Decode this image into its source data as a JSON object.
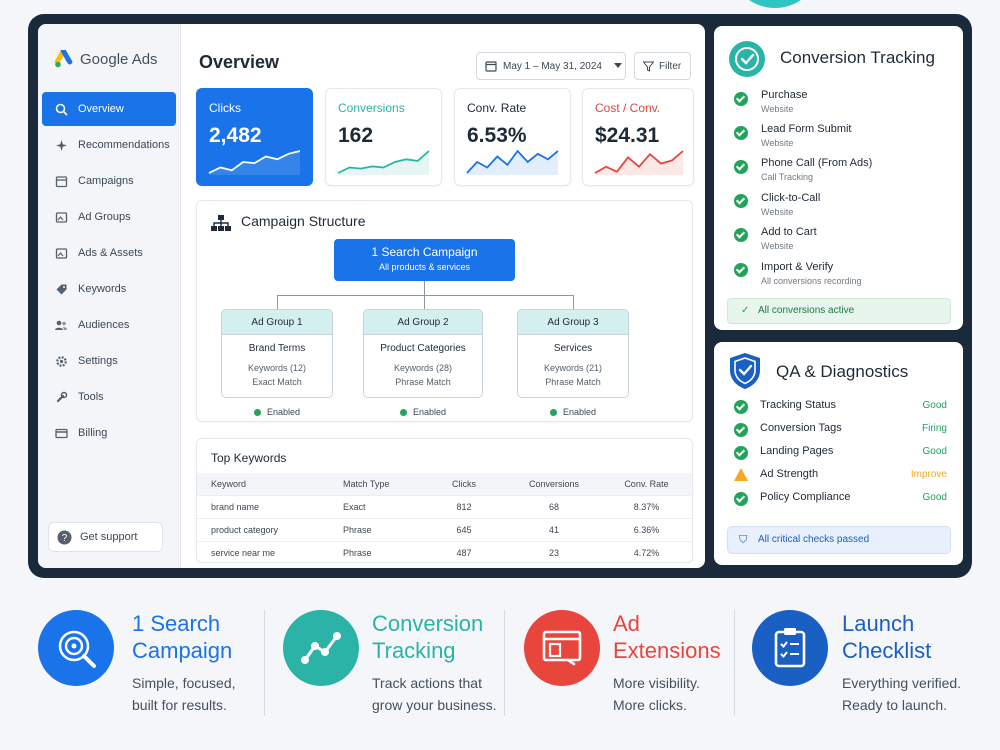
{
  "app": {
    "name": "Google Ads"
  },
  "sidebar": {
    "items": [
      {
        "label": "Overview",
        "icon": "search-icon"
      },
      {
        "label": "Recommendations",
        "icon": "sparkle-icon"
      },
      {
        "label": "Campaigns",
        "icon": "calendar-icon"
      },
      {
        "label": "Ad Groups",
        "icon": "image-icon"
      },
      {
        "label": "Ads & Assets",
        "icon": "image-icon"
      },
      {
        "label": "Keywords",
        "icon": "tag-icon"
      },
      {
        "label": "Audiences",
        "icon": "people-icon"
      },
      {
        "label": "Settings",
        "icon": "gear-icon"
      },
      {
        "label": "Tools",
        "icon": "wrench-icon"
      },
      {
        "label": "Billing",
        "icon": "card-icon"
      }
    ],
    "support_label": "Get support"
  },
  "header": {
    "title": "Overview",
    "date_range": "May 1 – May 31, 2024",
    "filter_label": "Filter"
  },
  "kpis": [
    {
      "label": "Clicks",
      "value": "2,482",
      "color": "#ffffff",
      "spark": [
        3,
        4,
        3.5,
        5,
        4.8,
        6,
        5.5,
        6.5,
        7
      ]
    },
    {
      "label": "Conversions",
      "value": "162",
      "color": "#2ab3a6",
      "spark": [
        2,
        3,
        2.8,
        3.2,
        3,
        4,
        4.5,
        4.2,
        6
      ]
    },
    {
      "label": "Conv. Rate",
      "value": "6.53%",
      "color": "#1a73e8",
      "spark": [
        2,
        4,
        3,
        5,
        3.5,
        6,
        4,
        5.5,
        4.5,
        6
      ]
    },
    {
      "label": "Cost / Conv.",
      "value": "$24.31",
      "color": "#e8453c",
      "spark": [
        3,
        4,
        3.2,
        5.5,
        4,
        6,
        4.5,
        5,
        6.5
      ]
    }
  ],
  "structure": {
    "title": "Campaign Structure",
    "campaign": {
      "title": "1 Search Campaign",
      "subtitle": "All products & services"
    },
    "ad_groups": [
      {
        "header": "Ad Group 1",
        "name": "Brand Terms",
        "keywords": "Keywords (12)",
        "match": "Exact Match",
        "status": "Enabled"
      },
      {
        "header": "Ad Group 2",
        "name": "Product Categories",
        "keywords": "Keywords (28)",
        "match": "Phrase Match",
        "status": "Enabled"
      },
      {
        "header": "Ad Group 3",
        "name": "Services",
        "keywords": "Keywords (21)",
        "match": "Phrase Match",
        "status": "Enabled"
      }
    ]
  },
  "keywords": {
    "title": "Top Keywords",
    "columns": [
      "Keyword",
      "Match Type",
      "Clicks",
      "Conversions",
      "Conv. Rate"
    ],
    "rows": [
      [
        "brand name",
        "Exact",
        "812",
        "68",
        "8.37%"
      ],
      [
        "product category",
        "Phrase",
        "645",
        "41",
        "6.36%"
      ],
      [
        "service near me",
        "Phrase",
        "487",
        "23",
        "4.72%"
      ]
    ]
  },
  "conversion_tracking": {
    "title": "Conversion Tracking",
    "items": [
      {
        "name": "Purchase",
        "sub": "Website"
      },
      {
        "name": "Lead Form Submit",
        "sub": "Website"
      },
      {
        "name": "Phone Call (From Ads)",
        "sub": "Call Tracking"
      },
      {
        "name": "Click-to-Call",
        "sub": "Website"
      },
      {
        "name": "Add to Cart",
        "sub": "Website"
      },
      {
        "name": "Import & Verify",
        "sub": "All conversions recording"
      }
    ],
    "banner": "All conversions active"
  },
  "qa": {
    "title": "QA & Diagnostics",
    "items": [
      {
        "name": "Tracking Status",
        "status": "Good",
        "color": "#22a35a",
        "icon": "check-icon"
      },
      {
        "name": "Conversion Tags",
        "status": "Firing",
        "color": "#22a35a",
        "icon": "check-icon"
      },
      {
        "name": "Landing Pages",
        "status": "Good",
        "color": "#22a35a",
        "icon": "check-icon"
      },
      {
        "name": "Ad Strength",
        "status": "Improve",
        "color": "#f4a724",
        "icon": "warning-icon"
      },
      {
        "name": "Policy Compliance",
        "status": "Good",
        "color": "#22a35a",
        "icon": "check-icon"
      }
    ],
    "banner": "All critical checks passed"
  },
  "features": [
    {
      "title1": "1 Search",
      "title2": "Campaign",
      "desc1": "Simple, focused,",
      "desc2": "built for results.",
      "color": "#1a73e8"
    },
    {
      "title1": "Conversion",
      "title2": "Tracking",
      "desc1": "Track actions that",
      "desc2": "grow your business.",
      "color": "#2ab3a6"
    },
    {
      "title1": "Ad",
      "title2": "Extensions",
      "desc1": "More visibility.",
      "desc2": "More clicks.",
      "color": "#e8453c"
    },
    {
      "title1": "Launch",
      "title2": "Checklist",
      "desc1": "Everything verified.",
      "desc2": "Ready to launch.",
      "color": "#1a5fc4"
    }
  ]
}
